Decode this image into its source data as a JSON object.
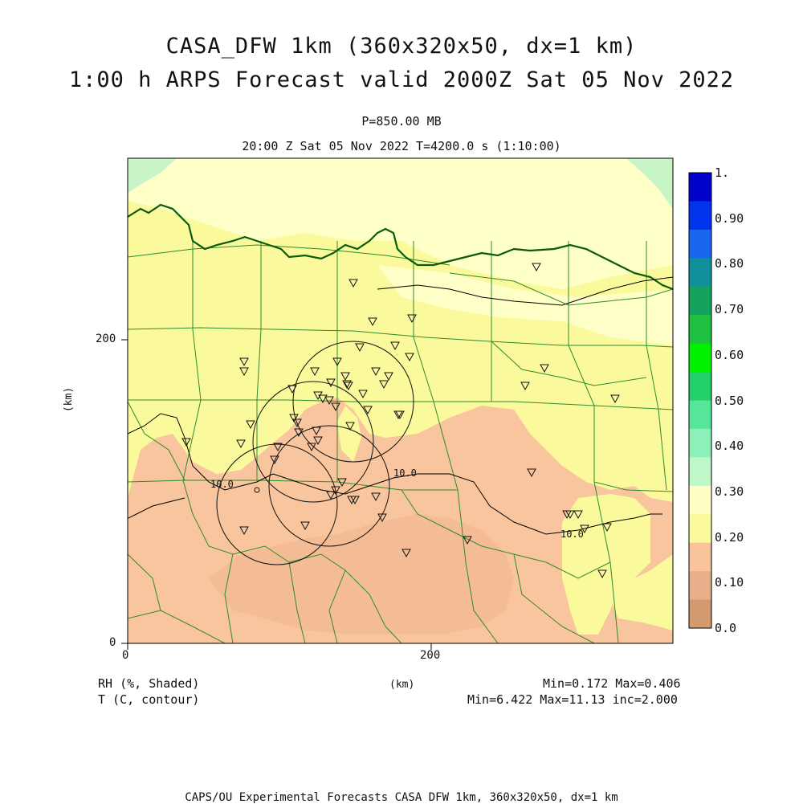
{
  "header": {
    "title_line1": "CASA_DFW 1km (360x320x50, dx=1 km)",
    "title_line2": "1:00 h ARPS Forecast valid 2000Z Sat 05 Nov 2022",
    "pressure_level": "P=850.00 MB",
    "time_line": "20:00 Z Sat 05 Nov 2022   T=4200.0 s (1:10:00)"
  },
  "axes": {
    "x_label": "(km)",
    "y_label": "(km)",
    "x_ticks": [
      "0",
      "200"
    ],
    "y_ticks": [
      "0",
      "200"
    ]
  },
  "colorbar": {
    "labels": [
      "1.",
      "0.90",
      "0.80",
      "0.70",
      "0.60",
      "0.50",
      "0.40",
      "0.30",
      "0.20",
      "0.10",
      "0.0"
    ],
    "colors": [
      "#0000cc",
      "#0033ee",
      "#1a66ee",
      "#10909a",
      "#13a35c",
      "#20c040",
      "#00f000",
      "#22d06a",
      "#55e69a",
      "#8cf0b8",
      "#bff7c9",
      "#ffffc4",
      "#fafa9c",
      "#f9c39c",
      "#e7b08a",
      "#d49a70"
    ]
  },
  "contours": {
    "labels": [
      "10.0",
      "10.0",
      "10.0"
    ]
  },
  "footer": {
    "left_line1": "RH (%, Shaded)",
    "left_line2": "T (C, contour)",
    "center": "(km)",
    "right_line1": "Min=0.172 Max=0.406",
    "right_line2": "Min=6.422 Max=11.13 inc=2.000",
    "credit": "CAPS/OU Experimental Forecasts  CASA DFW 1km, 360x320x50, dx=1 km"
  },
  "map_colors": {
    "dry": "#f9c59e",
    "very_dry": "#efb48c",
    "moist_low": "#fafa9c",
    "moist_mid": "#ffffc8",
    "moist_high": "#c8f5c8",
    "county_line": "#228b22",
    "river_line": "#0a5a0a",
    "contour_line": "#000000"
  }
}
